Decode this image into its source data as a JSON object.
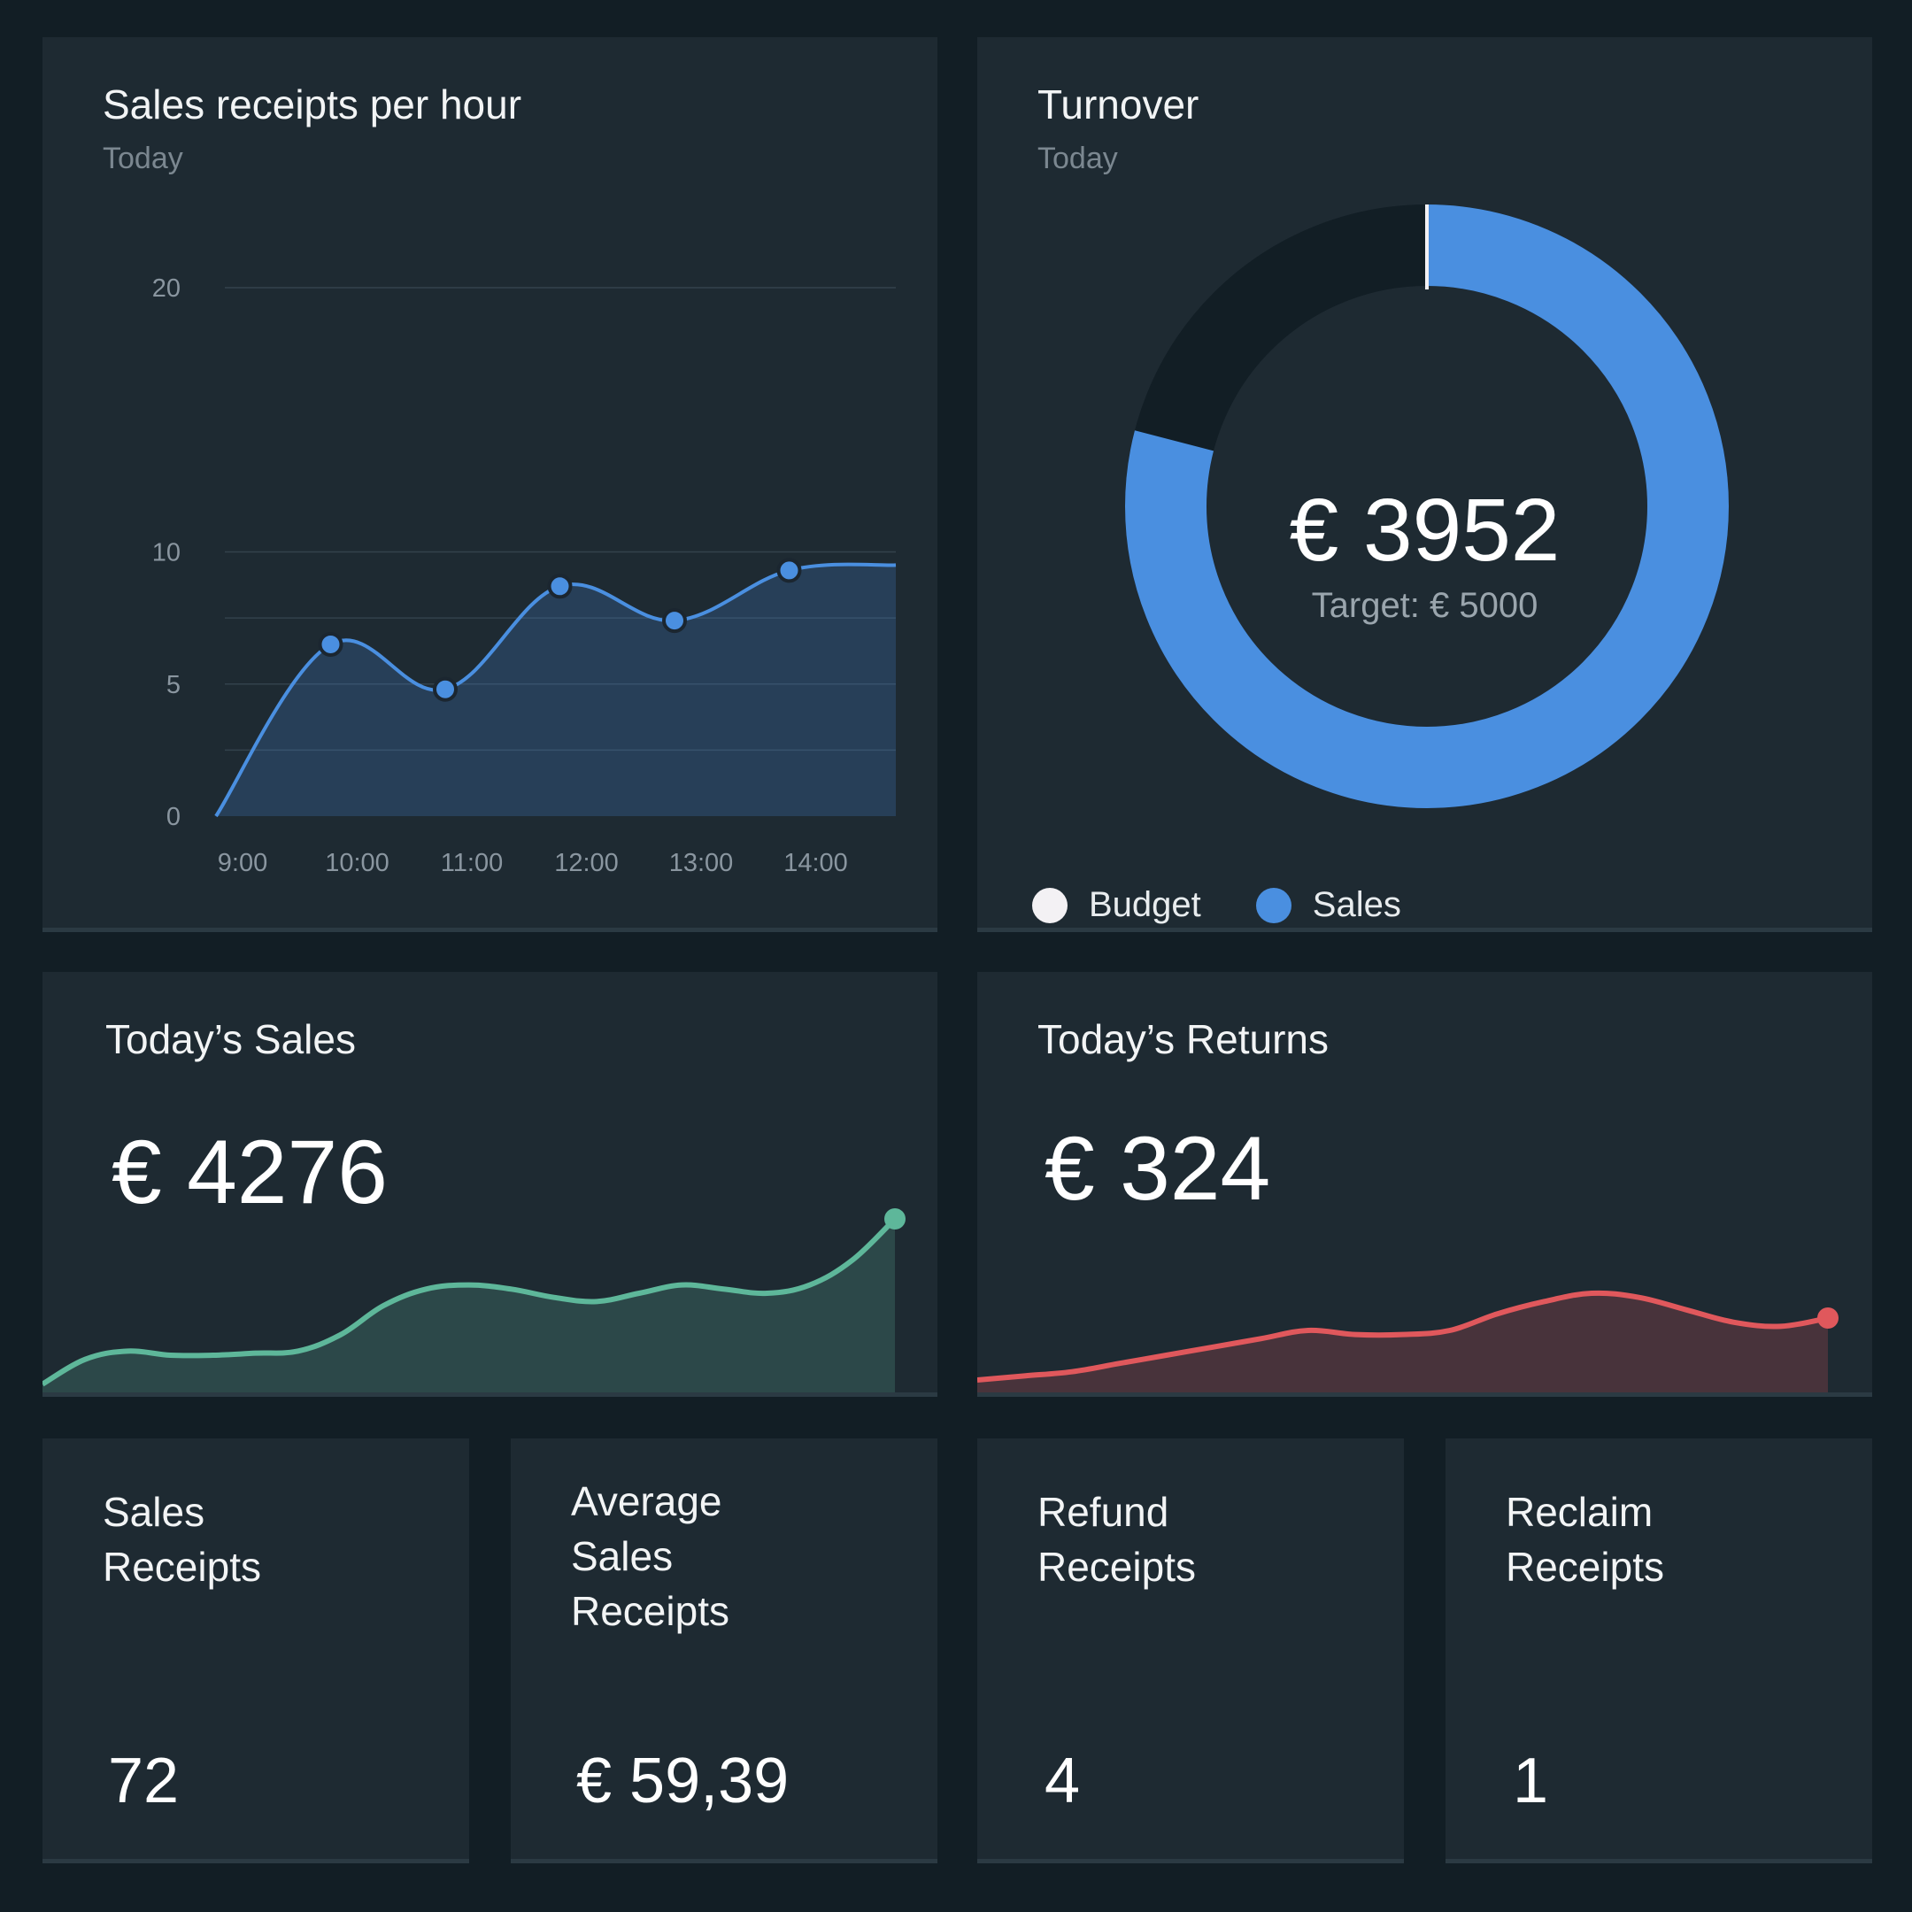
{
  "colors": {
    "background": "#121e25",
    "card": "#1e2a32",
    "blue": "#4a8fe0",
    "green": "#5eb79a",
    "red": "#e0585c",
    "budget": "#f3f1f4"
  },
  "receipts_card": {
    "title": "Sales receipts per hour",
    "subtitle": "Today"
  },
  "turnover_card": {
    "title": "Turnover",
    "subtitle": "Today",
    "value": "€ 3952",
    "target_label": "Target: € 5000",
    "legend": [
      {
        "label": "Budget",
        "color": "#f3f1f4"
      },
      {
        "label": "Sales",
        "color": "#4a8fe0"
      }
    ]
  },
  "sales_card": {
    "title": "Today’s Sales",
    "value": "€ 4276"
  },
  "returns_card": {
    "title": "Today’s Returns",
    "value": "€ 324"
  },
  "metrics": [
    {
      "title": "Sales\nReceipts",
      "value": "72"
    },
    {
      "title": "Average\nSales\nReceipts",
      "value": "€ 59,39"
    },
    {
      "title": "Refund\nReceipts",
      "value": "4"
    },
    {
      "title": "Reclaim\nReceipts",
      "value": "1"
    }
  ],
  "chart_data": [
    {
      "type": "area",
      "title": "Sales receipts per hour",
      "subtitle": "Today",
      "x": [
        "9:00",
        "10:00",
        "11:00",
        "12:00",
        "13:00",
        "14:00",
        "14:45"
      ],
      "y": [
        0,
        6.5,
        4.8,
        8.7,
        7.4,
        9.3,
        9.5
      ],
      "marker_indices": [
        1,
        2,
        3,
        4,
        5
      ],
      "xticks": [
        "9:00",
        "10:00",
        "11:00",
        "12:00",
        "13:00",
        "14:00"
      ],
      "yticks": [
        0,
        5,
        10,
        20
      ],
      "ylim": [
        0,
        20
      ],
      "grid": true
    },
    {
      "type": "pie",
      "variant": "donut",
      "title": "Turnover",
      "slices": [
        {
          "label": "Sales",
          "value": 3952
        },
        {
          "label": "Budget",
          "value": 1048
        }
      ],
      "total": 5000,
      "legend_position": "bottom-left"
    },
    {
      "type": "area",
      "title": "Today’s Sales",
      "y": [
        2,
        8,
        10,
        9,
        9,
        9.5,
        10,
        14,
        21,
        25,
        26,
        25,
        23,
        22,
        24,
        26,
        25,
        24,
        26,
        32,
        42
      ],
      "ylim": [
        0,
        45
      ]
    },
    {
      "type": "area",
      "title": "Today’s Returns",
      "y": [
        3,
        4,
        5,
        7,
        9,
        11,
        13,
        15,
        14,
        14,
        15,
        19,
        22,
        24,
        23,
        20,
        17,
        16,
        18
      ],
      "ylim": [
        0,
        45
      ]
    }
  ]
}
